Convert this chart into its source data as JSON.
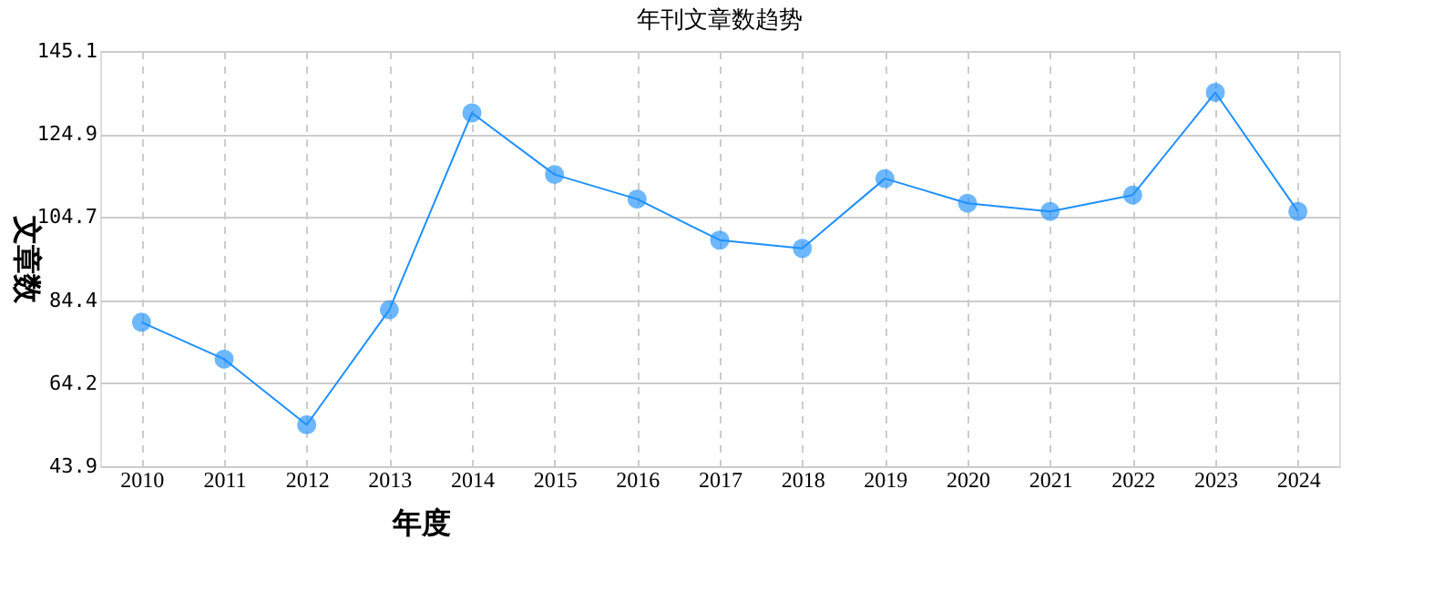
{
  "chart_data": {
    "type": "line",
    "title": "年刊文章数趋势",
    "xlabel": "年度",
    "ylabel": "文章数",
    "categories": [
      "2010",
      "2011",
      "2012",
      "2013",
      "2014",
      "2015",
      "2016",
      "2017",
      "2018",
      "2019",
      "2020",
      "2021",
      "2022",
      "2023",
      "2024"
    ],
    "series": [
      {
        "color": "#1e90ff",
        "values": [
          79,
          70,
          54,
          82,
          130,
          115,
          109,
          99,
          97,
          114,
          108,
          106,
          110,
          135,
          106
        ]
      }
    ],
    "ylim": [
      43.9,
      145.1
    ],
    "yticks": [
      43.9,
      64.2,
      84.4,
      104.7,
      124.9,
      145.1
    ],
    "grid": true,
    "marker": "circle",
    "line_style": "solid",
    "legend": false
  }
}
